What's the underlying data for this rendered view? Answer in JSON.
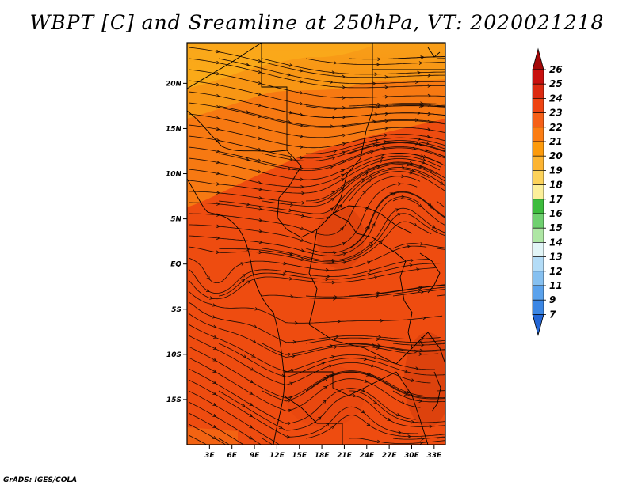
{
  "title": "WBPT [C] and Sreamline at 250hPa, VT: 2020021218",
  "footer": "GrADS: IGES/COLA",
  "map": {
    "lat_labels": [
      "20N",
      "15N",
      "10N",
      "5N",
      "EQ",
      "5S",
      "10S",
      "15S"
    ],
    "lon_labels": [
      "3E",
      "6E",
      "9E",
      "12E",
      "15E",
      "18E",
      "21E",
      "24E",
      "27E",
      "30E",
      "33E"
    ],
    "lon_range": [
      0,
      34.5
    ],
    "lat_range": [
      -20,
      24.5
    ]
  },
  "colorbar": {
    "labels": [
      "26",
      "25",
      "24",
      "23",
      "22",
      "21",
      "20",
      "19",
      "18",
      "17",
      "16",
      "15",
      "14",
      "13",
      "12",
      "11",
      "9",
      "7"
    ],
    "colors": [
      "#c8100e",
      "#dc2a10",
      "#ee4412",
      "#f56018",
      "#fb7d14",
      "#fc9a0c",
      "#fcb432",
      "#fcd25a",
      "#fcef9a",
      "#3dbc3d",
      "#6fd06f",
      "#aee6a4",
      "#e2f5f7",
      "#b3dcf7",
      "#86c0f0",
      "#5ba2ec",
      "#3b86e4",
      "#2366d6"
    ],
    "top_arrow_color": "#a40808",
    "bottom_arrow_color": "#2366d6"
  }
}
